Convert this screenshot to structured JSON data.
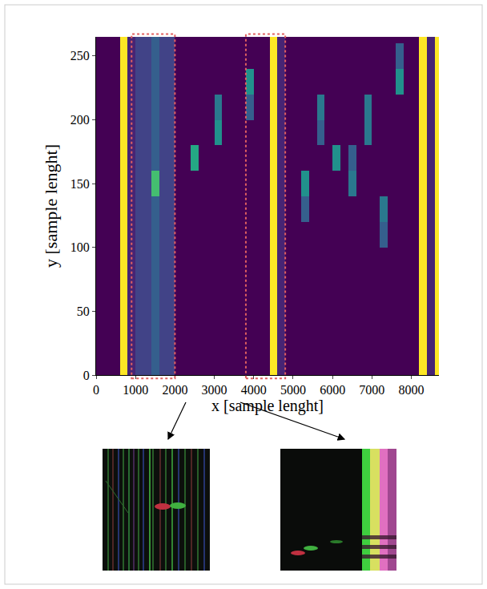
{
  "chart_data": {
    "type": "heatmap",
    "x_label": "x [sample lenght]",
    "y_label": "y [sample lenght]",
    "x": [
      100,
      300,
      500,
      700,
      900,
      1100,
      1300,
      1500,
      1700,
      1900,
      2100,
      2300,
      2500,
      2700,
      2900,
      3100,
      3300,
      3500,
      3700,
      3900,
      4100,
      4300,
      4500,
      4700,
      4900,
      5100,
      5300,
      5500,
      5700,
      5900,
      6100,
      6300,
      6500,
      6700,
      6900,
      7100,
      7300,
      7500,
      7700,
      7900,
      8100,
      8300,
      8500,
      8700
    ],
    "y": [
      10,
      30,
      50,
      70,
      90,
      110,
      130,
      150,
      170,
      190,
      210,
      230,
      250,
      270
    ],
    "z": [
      [
        0,
        0,
        0,
        10,
        1,
        2,
        2,
        3,
        2,
        2,
        0,
        0,
        0,
        0,
        0,
        0,
        0,
        0,
        0,
        0,
        0,
        0,
        10,
        1,
        0,
        0,
        0,
        0,
        0,
        0,
        0,
        0,
        0,
        0,
        0,
        0,
        0,
        0,
        0,
        0,
        0,
        10,
        1,
        10
      ],
      [
        0,
        0,
        0,
        10,
        1,
        2,
        2,
        3,
        2,
        2,
        0,
        0,
        0,
        0,
        0,
        0,
        0,
        0,
        0,
        0,
        0,
        0,
        10,
        1,
        0,
        0,
        0,
        0,
        0,
        0,
        0,
        0,
        0,
        0,
        0,
        0,
        0,
        0,
        0,
        0,
        0,
        10,
        1,
        10
      ],
      [
        0,
        0,
        0,
        10,
        1,
        2,
        2,
        3,
        2,
        2,
        0,
        0,
        0,
        0,
        0,
        0,
        0,
        0,
        0,
        0,
        0,
        0,
        10,
        1,
        0,
        0,
        0,
        0,
        0,
        0,
        0,
        0,
        0,
        0,
        0,
        0,
        0,
        0,
        0,
        0,
        0,
        10,
        1,
        10
      ],
      [
        0,
        0,
        0,
        10,
        1,
        2,
        2,
        3,
        2,
        2,
        0,
        0,
        0,
        0,
        0,
        0,
        0,
        0,
        0,
        0,
        0,
        0,
        10,
        1,
        0,
        0,
        0,
        0,
        0,
        0,
        0,
        0,
        0,
        0,
        0,
        0,
        0,
        0,
        0,
        0,
        0,
        10,
        1,
        10
      ],
      [
        0,
        0,
        0,
        10,
        1,
        2,
        2,
        3,
        2,
        2,
        0,
        0,
        0,
        0,
        0,
        0,
        0,
        0,
        0,
        0,
        0,
        0,
        10,
        1,
        0,
        0,
        0,
        0,
        0,
        0,
        0,
        0,
        0,
        0,
        0,
        0,
        0,
        0,
        0,
        0,
        0,
        10,
        1,
        10
      ],
      [
        0,
        0,
        0,
        10,
        1,
        2,
        2,
        3,
        2,
        2,
        0,
        0,
        0,
        0,
        0,
        0,
        0,
        0,
        0,
        0,
        0,
        0,
        10,
        1,
        0,
        0,
        0,
        0,
        0,
        0,
        0,
        0,
        0,
        0,
        0,
        0,
        3,
        0,
        0,
        0,
        0,
        10,
        1,
        10
      ],
      [
        0,
        0,
        0,
        10,
        1,
        2,
        2,
        3,
        2,
        2,
        0,
        0,
        0,
        0,
        0,
        0,
        0,
        0,
        0,
        0,
        0,
        0,
        10,
        1,
        0,
        0,
        3,
        0,
        0,
        0,
        0,
        0,
        0,
        0,
        0,
        0,
        4,
        0,
        0,
        0,
        0,
        10,
        1,
        10
      ],
      [
        0,
        0,
        0,
        10,
        1,
        2,
        2,
        7,
        2,
        2,
        0,
        0,
        0,
        0,
        0,
        0,
        0,
        0,
        0,
        0,
        0,
        0,
        10,
        1,
        0,
        0,
        5,
        0,
        0,
        0,
        0,
        0,
        4,
        0,
        0,
        0,
        0,
        0,
        0,
        0,
        0,
        10,
        1,
        10
      ],
      [
        0,
        0,
        0,
        10,
        1,
        2,
        2,
        3,
        2,
        2,
        0,
        0,
        6,
        0,
        0,
        0,
        0,
        0,
        0,
        0,
        0,
        0,
        10,
        1,
        0,
        0,
        0,
        0,
        0,
        0,
        5,
        0,
        3,
        0,
        0,
        0,
        0,
        0,
        0,
        0,
        0,
        10,
        1,
        10
      ],
      [
        0,
        0,
        0,
        10,
        1,
        2,
        2,
        3,
        2,
        2,
        0,
        0,
        0,
        0,
        0,
        5,
        0,
        0,
        0,
        0,
        0,
        0,
        10,
        1,
        0,
        0,
        0,
        0,
        3,
        0,
        0,
        0,
        0,
        0,
        4,
        0,
        0,
        0,
        0,
        0,
        0,
        10,
        1,
        10
      ],
      [
        0,
        0,
        0,
        10,
        1,
        2,
        2,
        3,
        2,
        2,
        0,
        0,
        0,
        0,
        0,
        4,
        0,
        0,
        0,
        3,
        0,
        0,
        10,
        1,
        0,
        0,
        0,
        0,
        4,
        0,
        0,
        0,
        0,
        0,
        4,
        0,
        0,
        0,
        0,
        0,
        0,
        10,
        1,
        10
      ],
      [
        0,
        0,
        0,
        10,
        1,
        2,
        2,
        3,
        2,
        2,
        0,
        0,
        0,
        0,
        0,
        0,
        0,
        0,
        0,
        5,
        0,
        0,
        10,
        1,
        0,
        0,
        0,
        0,
        0,
        0,
        0,
        0,
        0,
        0,
        0,
        0,
        0,
        0,
        5,
        0,
        0,
        10,
        1,
        10
      ],
      [
        0,
        0,
        0,
        10,
        1,
        2,
        2,
        3,
        2,
        2,
        0,
        0,
        0,
        0,
        0,
        0,
        0,
        0,
        0,
        0,
        0,
        0,
        10,
        1,
        0,
        0,
        0,
        0,
        0,
        0,
        0,
        0,
        0,
        0,
        0,
        0,
        0,
        0,
        3,
        0,
        0,
        10,
        1,
        10
      ],
      [
        0,
        0,
        0,
        10,
        1,
        2,
        2,
        3,
        2,
        2,
        0,
        0,
        0,
        0,
        0,
        0,
        0,
        0,
        0,
        0,
        0,
        0,
        10,
        1,
        0,
        0,
        0,
        0,
        0,
        0,
        0,
        0,
        0,
        0,
        0,
        0,
        0,
        0,
        0,
        0,
        0,
        10,
        1,
        10
      ]
    ],
    "xlim": [
      0,
      8700
    ],
    "ylim": [
      0,
      265
    ],
    "xticks": [
      0,
      1000,
      2000,
      3000,
      4000,
      5000,
      6000,
      7000,
      8000
    ],
    "yticks": [
      0,
      50,
      100,
      150,
      200,
      250
    ],
    "regions": [
      [
        900,
        2000
      ],
      [
        3800,
        4800
      ]
    ],
    "tick_labels": true,
    "grid": false
  }
}
